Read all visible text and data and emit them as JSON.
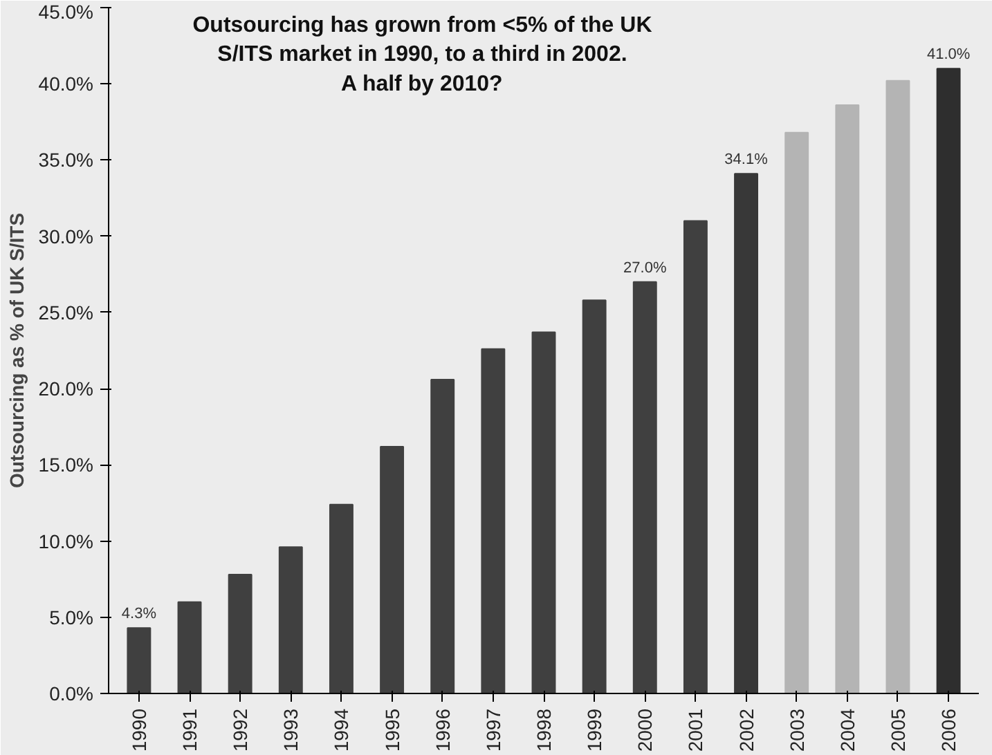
{
  "chart_data": {
    "type": "bar",
    "title": "Outsourcing has grown from <5% of the UK\nS/ITS market in 1990, to a third in 2002.\nA half by 2010?",
    "ylabel": "Outsourcing as % of UK S/ITS",
    "categories": [
      "1990",
      "1991",
      "1992",
      "1993",
      "1994",
      "1995",
      "1996",
      "1997",
      "1998",
      "1999",
      "2000",
      "2001",
      "2002",
      "2003",
      "2004",
      "2005",
      "2006"
    ],
    "values": [
      4.3,
      6.0,
      7.8,
      9.6,
      12.4,
      16.2,
      20.6,
      22.6,
      23.7,
      25.8,
      27.0,
      31.0,
      34.1,
      36.8,
      38.6,
      40.2,
      41.0
    ],
    "value_labels": [
      "4.3%",
      null,
      null,
      null,
      null,
      null,
      null,
      null,
      null,
      null,
      "27.0%",
      null,
      "34.1%",
      null,
      null,
      null,
      "41.0%"
    ],
    "colors": [
      "#404040",
      "#404040",
      "#404040",
      "#404040",
      "#404040",
      "#404040",
      "#404040",
      "#404040",
      "#404040",
      "#404040",
      "#404040",
      "#404040",
      "#383838",
      "#b4b4b4",
      "#b4b4b4",
      "#b4b4b4",
      "#2e2e2e"
    ],
    "ylim": [
      0,
      45
    ],
    "yticks": [
      {
        "value": 0,
        "label": "0.0%"
      },
      {
        "value": 5,
        "label": "5.0%"
      },
      {
        "value": 10,
        "label": "10.0%"
      },
      {
        "value": 15,
        "label": "15.0%"
      },
      {
        "value": 20,
        "label": "20.0%"
      },
      {
        "value": 25,
        "label": "25.0%"
      },
      {
        "value": 30,
        "label": "30.0%"
      },
      {
        "value": 35,
        "label": "35.0%"
      },
      {
        "value": 40,
        "label": "40.0%"
      },
      {
        "value": 45,
        "label": "45.0%"
      }
    ],
    "grid": false
  }
}
